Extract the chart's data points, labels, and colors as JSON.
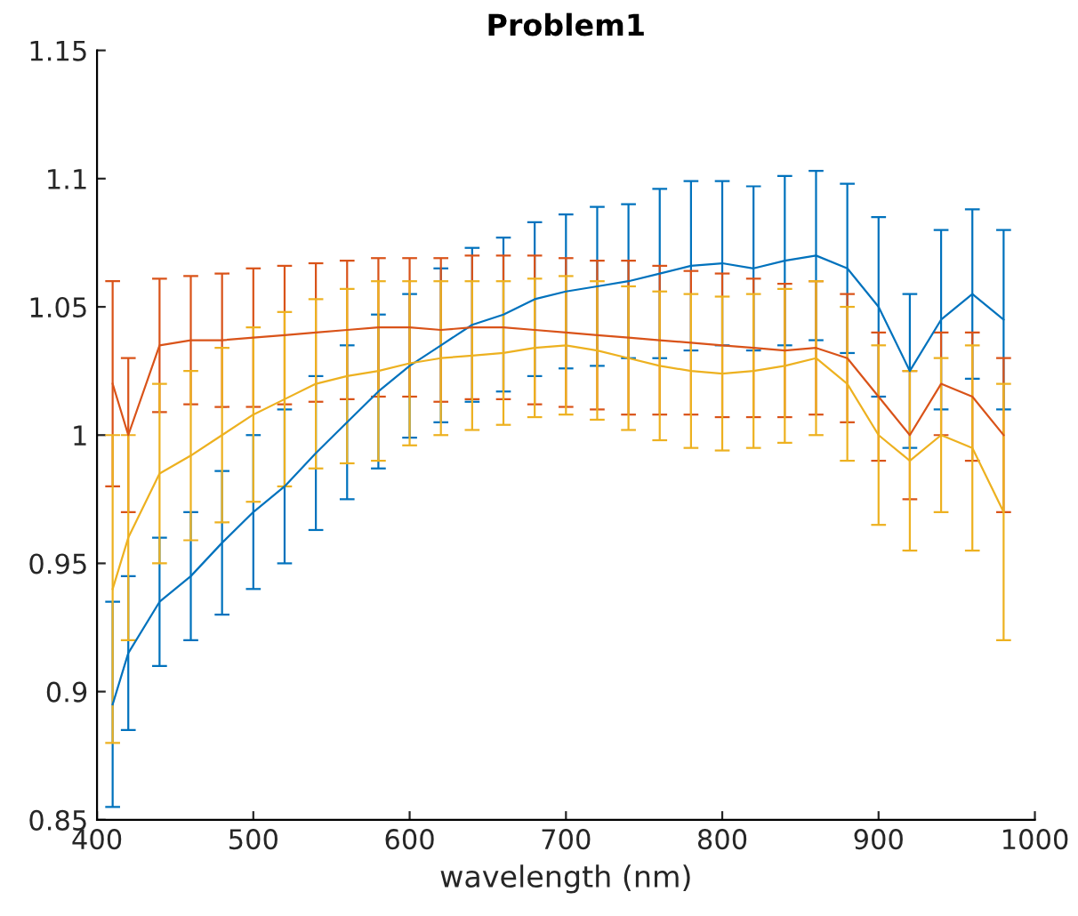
{
  "chart_data": {
    "type": "line",
    "title": "Problem1",
    "xlabel": "wavelength (nm)",
    "x": [
      410,
      420,
      440,
      460,
      480,
      500,
      520,
      540,
      560,
      580,
      600,
      620,
      640,
      660,
      680,
      700,
      720,
      740,
      760,
      780,
      800,
      820,
      840,
      860,
      880,
      900,
      920,
      940,
      960,
      980
    ],
    "series": [
      {
        "color": "#0072bd",
        "values": [
          0.895,
          0.915,
          0.935,
          0.945,
          0.958,
          0.97,
          0.98,
          0.993,
          1.005,
          1.017,
          1.027,
          1.035,
          1.043,
          1.047,
          1.053,
          1.056,
          1.058,
          1.06,
          1.063,
          1.066,
          1.067,
          1.065,
          1.068,
          1.07,
          1.065,
          1.05,
          1.025,
          1.045,
          1.055,
          1.045
        ],
        "errors": [
          0.04,
          0.03,
          0.025,
          0.025,
          0.028,
          0.03,
          0.03,
          0.03,
          0.03,
          0.03,
          0.028,
          0.03,
          0.03,
          0.03,
          0.03,
          0.03,
          0.031,
          0.03,
          0.033,
          0.033,
          0.032,
          0.032,
          0.033,
          0.033,
          0.033,
          0.035,
          0.03,
          0.035,
          0.033,
          0.035
        ]
      },
      {
        "color": "#d95319",
        "values": [
          1.02,
          1.0,
          1.035,
          1.037,
          1.037,
          1.038,
          1.039,
          1.04,
          1.041,
          1.042,
          1.042,
          1.041,
          1.042,
          1.042,
          1.041,
          1.04,
          1.039,
          1.038,
          1.037,
          1.036,
          1.035,
          1.034,
          1.033,
          1.034,
          1.03,
          1.015,
          1.0,
          1.02,
          1.015,
          1.0
        ],
        "errors": [
          0.04,
          0.03,
          0.026,
          0.025,
          0.026,
          0.027,
          0.027,
          0.027,
          0.027,
          0.027,
          0.027,
          0.028,
          0.028,
          0.028,
          0.029,
          0.029,
          0.029,
          0.03,
          0.029,
          0.028,
          0.028,
          0.027,
          0.026,
          0.026,
          0.025,
          0.025,
          0.025,
          0.02,
          0.025,
          0.03
        ]
      },
      {
        "color": "#edb120",
        "values": [
          0.94,
          0.96,
          0.985,
          0.992,
          1.0,
          1.008,
          1.014,
          1.02,
          1.023,
          1.025,
          1.028,
          1.03,
          1.031,
          1.032,
          1.034,
          1.035,
          1.033,
          1.03,
          1.027,
          1.025,
          1.024,
          1.025,
          1.027,
          1.03,
          1.02,
          1.0,
          0.99,
          1.0,
          0.995,
          0.97
        ],
        "errors": [
          0.06,
          0.04,
          0.035,
          0.033,
          0.034,
          0.034,
          0.034,
          0.033,
          0.034,
          0.035,
          0.032,
          0.03,
          0.029,
          0.028,
          0.027,
          0.027,
          0.027,
          0.028,
          0.029,
          0.03,
          0.03,
          0.03,
          0.03,
          0.03,
          0.03,
          0.035,
          0.035,
          0.03,
          0.04,
          0.05
        ]
      }
    ],
    "xlim": [
      400,
      1000
    ],
    "xticks": [
      400,
      500,
      600,
      700,
      800,
      900,
      1000
    ],
    "ylim": [
      0.85,
      1.15
    ],
    "yticks": [
      0.85,
      0.9,
      0.95,
      1,
      1.05,
      1.1,
      1.15
    ],
    "grid": false,
    "legend": false,
    "marker": "none",
    "line_style": "solid"
  }
}
